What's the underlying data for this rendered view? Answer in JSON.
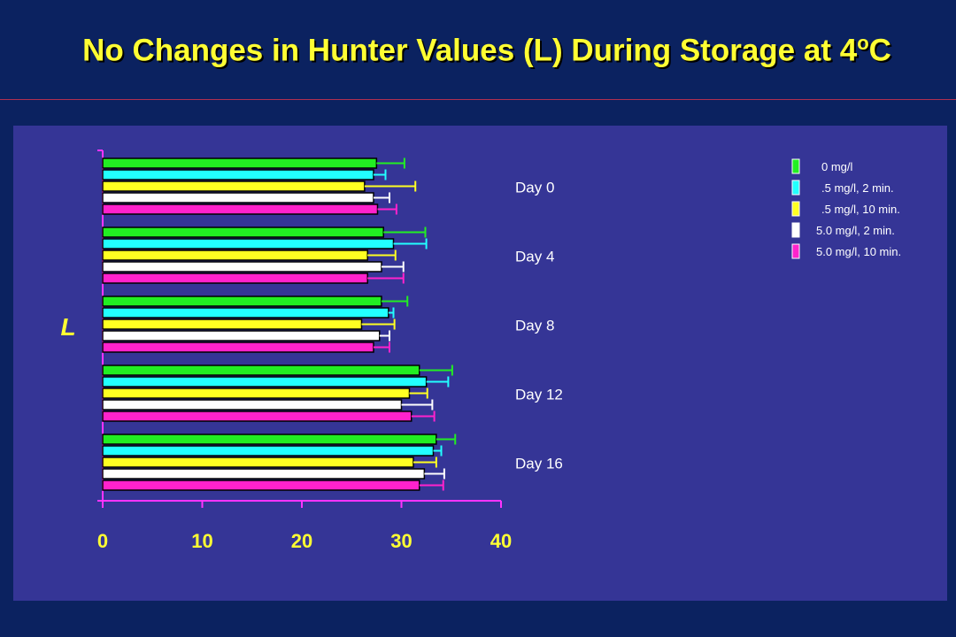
{
  "slide": {
    "title_main": "No Changes in Hunter Values (L) During Storage at 4",
    "title_sup": "o",
    "title_end": "C"
  },
  "colors": {
    "background": "#0b2260",
    "panel": "#353596",
    "title": "#ffff33",
    "axis": "#ff33ff"
  },
  "chart_data": {
    "type": "bar",
    "orientation": "horizontal",
    "ylabel": "L",
    "xlim": [
      0,
      40
    ],
    "x_ticks": [
      "0",
      "10",
      "20",
      "30",
      "40"
    ],
    "categories": [
      "Day 0",
      "Day 4",
      "Day 8",
      "Day 12",
      "Day 16"
    ],
    "series": [
      {
        "name": "0 mg/l",
        "color": "#22ee22",
        "values": [
          27.5,
          28.2,
          28.0,
          31.8,
          33.5
        ],
        "errors": [
          2.8,
          4.2,
          2.6,
          3.3,
          1.9
        ]
      },
      {
        "name": ".5 mg/l, 2 min.",
        "color": "#22ffff",
        "values": [
          27.2,
          29.2,
          28.7,
          32.5,
          33.2
        ],
        "errors": [
          1.2,
          3.3,
          0.5,
          2.2,
          0.8
        ]
      },
      {
        "name": ".5 mg/l, 10 min.",
        "color": "#ffff22",
        "values": [
          26.3,
          26.6,
          26.0,
          30.8,
          31.2
        ],
        "errors": [
          5.1,
          2.8,
          3.3,
          1.8,
          2.3
        ]
      },
      {
        "name": "5.0 mg/l, 2 min.",
        "color": "#ffffff",
        "values": [
          27.2,
          28.0,
          27.8,
          30.0,
          32.3
        ],
        "errors": [
          1.6,
          2.2,
          1.0,
          3.1,
          2.0
        ]
      },
      {
        "name": "5.0 mg/l, 10 min.",
        "color": "#ff22cc",
        "values": [
          27.6,
          26.6,
          27.2,
          31.0,
          31.8
        ],
        "errors": [
          1.9,
          3.6,
          1.6,
          2.3,
          2.4
        ]
      }
    ],
    "legend_position": "top-right",
    "grid": false
  }
}
